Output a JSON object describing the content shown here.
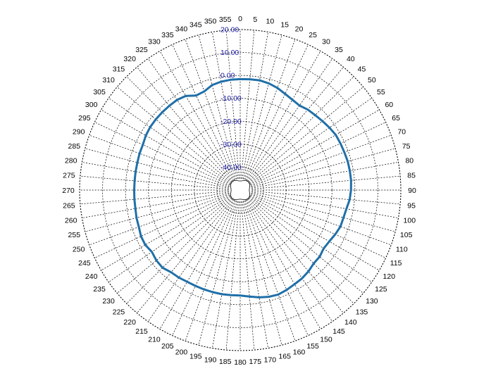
{
  "chart_data": {
    "type": "polar-line",
    "title": "",
    "angles": [
      0,
      5,
      10,
      15,
      20,
      25,
      30,
      35,
      40,
      45,
      50,
      55,
      60,
      65,
      70,
      75,
      80,
      85,
      90,
      95,
      100,
      105,
      110,
      115,
      120,
      125,
      130,
      135,
      140,
      145,
      150,
      155,
      160,
      165,
      170,
      175,
      180,
      185,
      190,
      195,
      200,
      205,
      210,
      215,
      220,
      225,
      230,
      235,
      240,
      245,
      250,
      255,
      260,
      265,
      270,
      275,
      280,
      285,
      290,
      295,
      300,
      305,
      310,
      315,
      320,
      325,
      330,
      335,
      340,
      345,
      350,
      355
    ],
    "angle_labels": [
      "0",
      "5",
      "10",
      "15",
      "20",
      "25",
      "30",
      "35",
      "40",
      "45",
      "50",
      "55",
      "60",
      "65",
      "70",
      "75",
      "80",
      "85",
      "90",
      "95",
      "100",
      "105",
      "110",
      "115",
      "120",
      "125",
      "130",
      "135",
      "140",
      "145",
      "150",
      "155",
      "160",
      "165",
      "170",
      "175",
      "180",
      "185",
      "190",
      "195",
      "200",
      "205",
      "210",
      "215",
      "220",
      "225",
      "230",
      "235",
      "240",
      "245",
      "250",
      "255",
      "260",
      "265",
      "270",
      "275",
      "280",
      "285",
      "290",
      "295",
      "300",
      "305",
      "310",
      "315",
      "320",
      "325",
      "330",
      "335",
      "340",
      "345",
      "350",
      "355"
    ],
    "radial_range": [
      -50,
      20
    ],
    "radial_ticks": [
      20,
      10,
      0,
      -10,
      -20,
      -30,
      -40
    ],
    "radial_tick_labels": [
      "20.00",
      "10.00",
      "0.00",
      "-10.00",
      "-20.00",
      "-30.00",
      "-40.00"
    ],
    "angle_direction": "clockwise",
    "zero_at": "top",
    "grid": true,
    "legend": "none",
    "series": [
      {
        "color": "#1f6fa8",
        "values": [
          -1.6,
          -1.5,
          -1.4,
          -1.8,
          -2.6,
          -3.7,
          -4.5,
          -5.0,
          -4.2,
          -3.8,
          -3.2,
          -2.5,
          -1.9,
          -1.8,
          -1.7,
          -1.5,
          -1.5,
          -1.5,
          -1.7,
          -2.1,
          -3.0,
          -3.4,
          -3.5,
          -4.3,
          -5.2,
          -5.6,
          -4.8,
          -4.7,
          -3.7,
          -3.0,
          -2.6,
          -2.0,
          -1.5,
          -1.8,
          -2.5,
          -3.4,
          -4.0,
          -4.0,
          -3.9,
          -3.9,
          -3.9,
          -3.9,
          -3.8,
          -3.4,
          -3.2,
          -2.1,
          -2.3,
          -3.0,
          -2.2,
          -2.3,
          -3.0,
          -3.2,
          -3.6,
          -3.7,
          -3.8,
          -3.8,
          -3.7,
          -3.6,
          -3.3,
          -3.2,
          -2.5,
          -2.1,
          -2.0,
          -2.0,
          -2.0,
          -2.0,
          -2.6,
          -4.5,
          -4.2,
          -2.6,
          -2.0,
          -1.7
        ]
      }
    ]
  }
}
